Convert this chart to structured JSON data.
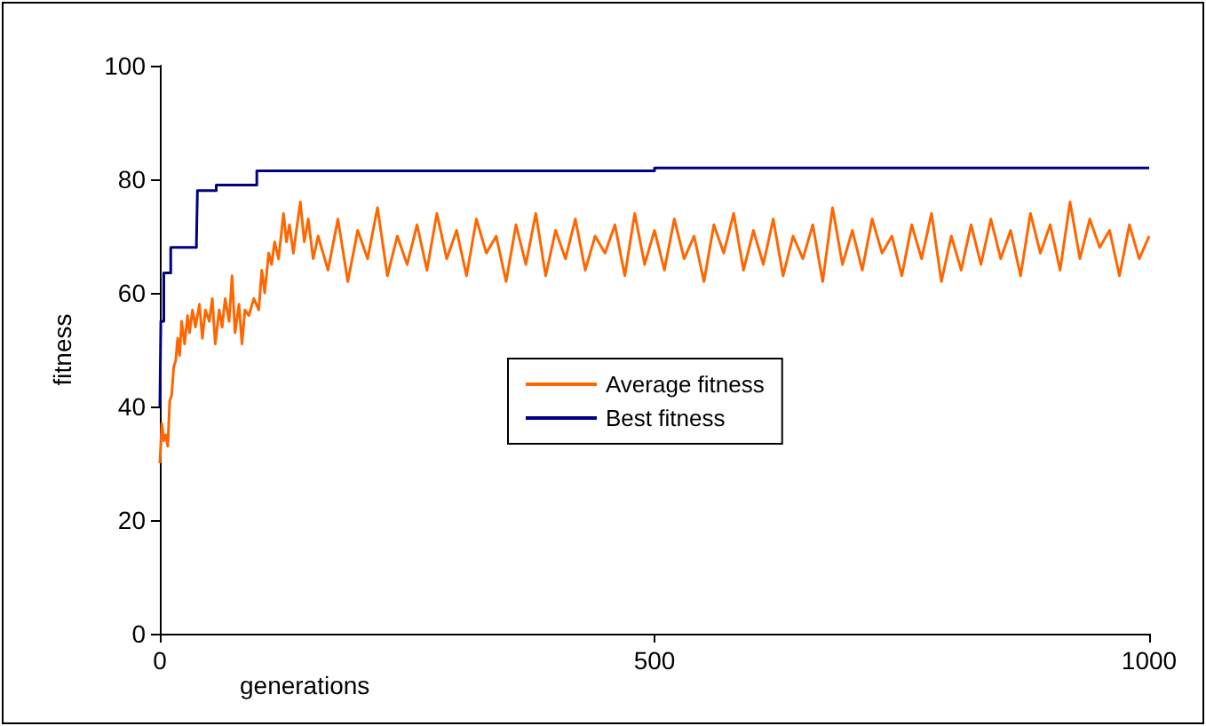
{
  "chart_data": {
    "type": "line",
    "xlabel": "generations",
    "ylabel": "fitness",
    "xlim": [
      0,
      1000
    ],
    "xticks": [
      0,
      500,
      1000
    ],
    "ylim": [
      0,
      100
    ],
    "yticks": [
      0,
      20,
      40,
      60,
      80,
      100
    ],
    "grid": false,
    "legend": "center",
    "marker": "none",
    "line_style": "solid",
    "series": [
      {
        "name": "Average fitness",
        "color": "#ff6600",
        "x": [
          0,
          2,
          4,
          6,
          8,
          10,
          12,
          14,
          16,
          18,
          20,
          22,
          25,
          28,
          30,
          33,
          36,
          40,
          43,
          46,
          50,
          53,
          56,
          60,
          63,
          66,
          70,
          73,
          76,
          80,
          83,
          86,
          90,
          95,
          100,
          103,
          106,
          110,
          113,
          116,
          120,
          125,
          128,
          131,
          135,
          138,
          142,
          146,
          150,
          155,
          160,
          170,
          180,
          190,
          200,
          210,
          220,
          230,
          240,
          250,
          260,
          270,
          280,
          290,
          300,
          310,
          320,
          330,
          340,
          350,
          360,
          370,
          380,
          390,
          400,
          410,
          420,
          430,
          440,
          450,
          460,
          470,
          480,
          490,
          500,
          510,
          520,
          530,
          540,
          550,
          560,
          570,
          580,
          590,
          600,
          610,
          620,
          630,
          640,
          650,
          660,
          670,
          680,
          690,
          700,
          710,
          720,
          730,
          740,
          750,
          760,
          770,
          780,
          790,
          800,
          810,
          820,
          830,
          840,
          850,
          860,
          870,
          880,
          890,
          900,
          910,
          920,
          930,
          940,
          950,
          960,
          970,
          980,
          990,
          1000
        ],
        "values": [
          30,
          37,
          34,
          35,
          33,
          41,
          42,
          47,
          48,
          52,
          49,
          55,
          51,
          56,
          53,
          57,
          54,
          58,
          52,
          57,
          55,
          59,
          51,
          57,
          54,
          59,
          55,
          63,
          53,
          58,
          51,
          57,
          56,
          59,
          57,
          64,
          60,
          67,
          65,
          69,
          66,
          74,
          69,
          72,
          67,
          71,
          76,
          69,
          73,
          66,
          70,
          64,
          73,
          62,
          71,
          66,
          75,
          63,
          70,
          65,
          72,
          64,
          74,
          66,
          71,
          63,
          73,
          67,
          70,
          62,
          72,
          65,
          74,
          63,
          71,
          66,
          73,
          64,
          70,
          67,
          72,
          63,
          74,
          65,
          71,
          64,
          73,
          66,
          70,
          62,
          72,
          67,
          74,
          64,
          71,
          65,
          73,
          63,
          70,
          66,
          72,
          62,
          75,
          65,
          71,
          64,
          73,
          67,
          70,
          63,
          72,
          66,
          74,
          62,
          70,
          64,
          72,
          65,
          73,
          66,
          71,
          63,
          74,
          67,
          72,
          64,
          76,
          66,
          73,
          68,
          71,
          63,
          72,
          66,
          70
        ]
      },
      {
        "name": "Best fitness",
        "color": "#000080",
        "type": "step",
        "x": [
          0,
          1,
          4,
          11,
          37,
          38,
          57,
          98,
          500,
          1000
        ],
        "values": [
          40,
          55,
          63.5,
          68,
          69,
          78,
          79,
          81.5,
          82,
          82
        ]
      }
    ]
  }
}
